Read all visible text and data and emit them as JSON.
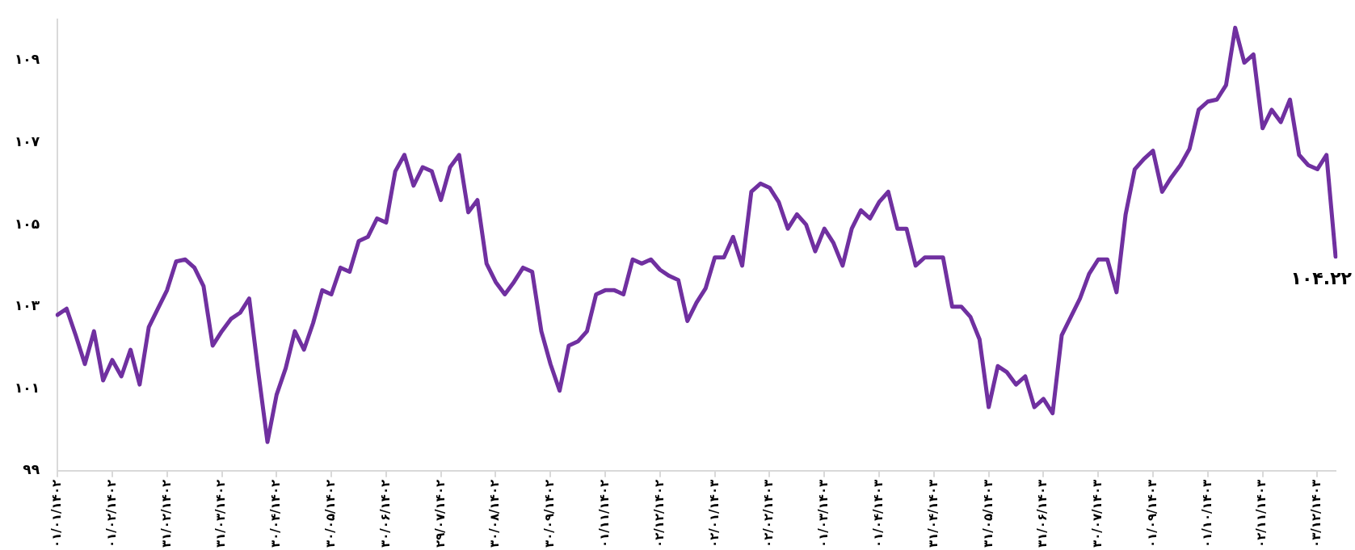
{
  "chart_data": {
    "type": "line",
    "color": "#7030a0",
    "categories": [
      "۰۱/۰۱/۱۴۰۲",
      null,
      null,
      null,
      null,
      null,
      "۰۱/۰۲/۱۴۰۲",
      null,
      null,
      null,
      null,
      null,
      "۳۱/۰۲/۱۴۰۲",
      null,
      null,
      null,
      null,
      null,
      "۳۱/۰۳/۱۴۰۲",
      null,
      null,
      null,
      null,
      null,
      "۳۰/۰۴/۱۴۰۲",
      null,
      null,
      null,
      null,
      null,
      "۳۰/۰۵/۱۴۰۲",
      null,
      null,
      null,
      null,
      null,
      "۳۰/۰۶/۱۴۰۲",
      null,
      null,
      null,
      null,
      null,
      "۲۹/۰۷/۱۴۰۲",
      null,
      null,
      null,
      null,
      null,
      "۳۰/۰۸/۱۴۰۲",
      null,
      null,
      null,
      null,
      null,
      "۳۰/۰۹/۱۴۰۲",
      null,
      null,
      null,
      null,
      null,
      "۰۱/۱۱/۱۴۰۲",
      null,
      null,
      null,
      null,
      null,
      "۰۲/۱۲/۱۴۰۲",
      null,
      null,
      null,
      null,
      null,
      "۰۲/۰۱/۱۴۰۳",
      null,
      null,
      null,
      null,
      null,
      "۰۲/۰۲/۱۴۰۳",
      null,
      null,
      null,
      null,
      null,
      "۰۱/۰۳/۱۴۰۳",
      null,
      null,
      null,
      null,
      null,
      "۰۱/۰۴/۱۴۰۳",
      null,
      null,
      null,
      null,
      null,
      "۳۱/۰۴/۱۴۰۳",
      null,
      null,
      null,
      null,
      null,
      "۳۱/۰۵/۱۴۰۳",
      null,
      null,
      null,
      null,
      null,
      "۳۱/۰۶/۱۴۰۳",
      null,
      null,
      null,
      null,
      null,
      "۳۰/۰۷/۱۴۰۳",
      null,
      null,
      null,
      null,
      null,
      "۰۱/۰۹/۱۴۰۳",
      null,
      null,
      null,
      null,
      null,
      "۰۱/۱۰/۱۴۰۳",
      null,
      null,
      null,
      null,
      null,
      "۰۲/۱۱/۱۴۰۳",
      null,
      null,
      null,
      null,
      null,
      "۰۳/۱۲/۱۴۰۳",
      null,
      null
    ],
    "values": [
      102.8,
      102.95,
      102.3,
      101.6,
      102.4,
      101.2,
      101.7,
      101.3,
      101.95,
      101.1,
      102.5,
      102.95,
      103.4,
      104.1,
      104.15,
      103.95,
      103.5,
      102.05,
      102.4,
      102.7,
      102.85,
      103.2,
      101.4,
      99.7,
      100.85,
      101.5,
      102.4,
      101.95,
      102.6,
      103.4,
      103.3,
      103.95,
      103.85,
      104.6,
      104.7,
      105.15,
      105.05,
      106.3,
      106.7,
      105.95,
      106.4,
      106.3,
      105.6,
      106.4,
      106.7,
      105.3,
      105.6,
      104.05,
      103.6,
      103.3,
      103.6,
      103.95,
      103.85,
      102.4,
      101.6,
      100.95,
      102.05,
      102.15,
      102.4,
      103.3,
      103.4,
      103.4,
      103.3,
      104.15,
      104.05,
      104.15,
      103.9,
      103.75,
      103.65,
      102.65,
      103.1,
      103.45,
      104.2,
      104.2,
      104.7,
      104.0,
      105.8,
      106.0,
      105.9,
      105.55,
      104.9,
      105.25,
      105.0,
      104.35,
      104.9,
      104.55,
      104.0,
      104.9,
      105.35,
      105.15,
      105.55,
      105.8,
      104.9,
      104.9,
      104.0,
      104.2,
      104.2,
      104.2,
      103.0,
      103.0,
      102.75,
      102.2,
      100.55,
      101.55,
      101.4,
      101.1,
      101.3,
      100.55,
      100.75,
      100.4,
      102.3,
      102.75,
      103.2,
      103.8,
      104.15,
      104.15,
      103.35,
      105.25,
      106.35,
      106.6,
      106.8,
      105.8,
      106.15,
      106.45,
      106.85,
      107.8,
      108.0,
      108.05,
      108.4,
      109.8,
      108.95,
      109.15,
      107.35,
      107.8,
      107.5,
      108.05,
      106.7,
      106.45,
      106.35,
      106.7,
      104.22
    ],
    "value_labels": [
      null,
      null,
      null,
      null,
      null,
      null,
      null,
      null,
      null,
      null,
      null,
      null,
      null,
      null,
      null,
      null,
      null,
      null,
      null,
      null,
      null,
      null,
      null,
      null,
      null,
      null,
      null,
      null,
      null,
      null,
      null,
      null,
      null,
      null,
      null,
      null,
      null,
      null,
      null,
      null,
      null,
      null,
      null,
      null,
      null,
      null,
      null,
      null,
      null,
      null,
      null,
      null,
      null,
      null,
      null,
      null,
      null,
      null,
      null,
      null,
      null,
      null,
      null,
      null,
      null,
      null,
      null,
      null,
      null,
      null,
      null,
      null,
      null,
      null,
      null,
      null,
      null,
      null,
      null,
      null,
      null,
      null,
      null,
      null,
      null,
      null,
      null,
      null,
      null,
      null,
      null,
      null,
      null,
      null,
      null,
      null,
      null,
      null,
      null,
      null,
      null,
      null,
      null,
      null,
      null,
      null,
      null,
      null,
      null,
      null,
      null,
      null,
      null,
      null,
      null,
      null,
      null,
      null,
      null,
      null,
      null,
      null,
      null,
      null,
      null,
      null,
      null,
      null,
      null,
      null,
      null,
      null,
      null,
      null,
      null,
      null,
      null,
      null,
      null,
      null,
      "۱۰۴.۲۲"
    ],
    "ylim": [
      99,
      110
    ],
    "yticks": [
      {
        "value": 99,
        "label": "۹۹"
      },
      {
        "value": 101,
        "label": "۱۰۱"
      },
      {
        "value": 103,
        "label": "۱۰۳"
      },
      {
        "value": 105,
        "label": "۱۰۵"
      },
      {
        "value": 107,
        "label": "۱۰۷"
      },
      {
        "value": 109,
        "label": "۱۰۹"
      }
    ]
  }
}
